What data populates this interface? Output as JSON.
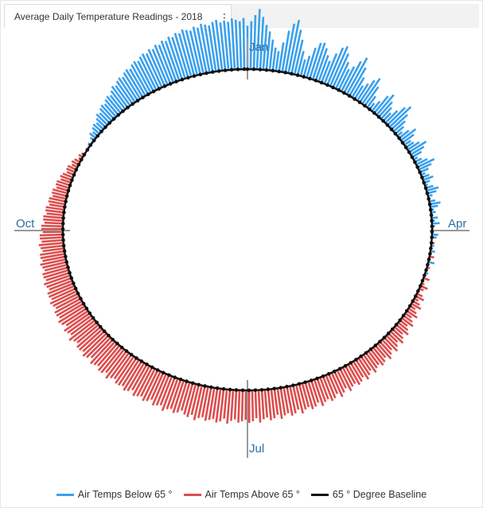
{
  "panel": {
    "title": "Average Daily Temperature Readings - 2018",
    "menu_icon": "more-vertical-icon"
  },
  "colors": {
    "below": "#3aa0ee",
    "above": "#dd4d4d",
    "baseline": "#111111",
    "axis": "#9a9a9a",
    "month_label": "#2a6fa8"
  },
  "chart_data": {
    "type": "radial-bar",
    "title": "Average Daily Temperature Readings - 2018",
    "baseline_value": 65,
    "month_labels": [
      "Jan",
      "Apr",
      "Jul",
      "Oct"
    ],
    "legend": [
      {
        "name": "Air Temps Below 65 °",
        "color": "#3aa0ee"
      },
      {
        "name": "Air Temps Above  65 °",
        "color": "#dd4d4d"
      },
      {
        "name": "65 ° Degree Baseline",
        "color": "#111111"
      }
    ],
    "days": [
      1,
      2,
      3,
      4,
      5,
      6,
      7,
      8,
      9,
      10,
      11,
      12,
      13,
      14,
      15,
      16,
      17,
      18,
      19,
      20,
      21,
      22,
      23,
      24,
      25,
      26,
      27,
      28,
      29,
      30,
      31,
      32,
      33,
      34,
      35,
      36,
      37,
      38,
      39,
      40,
      41,
      42,
      43,
      44,
      45,
      46,
      47,
      48,
      49,
      50,
      51,
      52,
      53,
      54,
      55,
      56,
      57,
      58,
      59,
      60,
      61,
      62,
      63,
      64,
      65,
      66,
      67,
      68,
      69,
      70,
      71,
      72,
      73,
      74,
      75,
      76,
      77,
      78,
      79,
      80,
      81,
      82,
      83,
      84,
      85,
      86,
      87,
      88,
      89,
      90,
      91,
      92,
      93,
      94,
      95,
      96,
      97,
      98,
      99,
      100,
      101,
      102,
      103,
      104,
      105,
      106,
      107,
      108,
      109,
      110,
      111,
      112,
      113,
      114,
      115,
      116,
      117,
      118,
      119,
      120,
      121,
      122,
      123,
      124,
      125,
      126,
      127,
      128,
      129,
      130,
      131,
      132,
      133,
      134,
      135,
      136,
      137,
      138,
      139,
      140,
      141,
      142,
      143,
      144,
      145,
      146,
      147,
      148,
      149,
      150,
      151,
      152,
      153,
      154,
      155,
      156,
      157,
      158,
      159,
      160,
      161,
      162,
      163,
      164,
      165,
      166,
      167,
      168,
      169,
      170,
      171,
      172,
      173,
      174,
      175,
      176,
      177,
      178,
      179,
      180,
      181,
      182,
      183,
      184,
      185,
      186,
      187,
      188,
      189,
      190,
      191,
      192,
      193,
      194,
      195,
      196,
      197,
      198,
      199,
      200,
      201,
      202,
      203,
      204,
      205,
      206,
      207,
      208,
      209,
      210,
      211,
      212,
      213,
      214,
      215,
      216,
      217,
      218,
      219,
      220,
      221,
      222,
      223,
      224,
      225,
      226,
      227,
      228,
      229,
      230,
      231,
      232,
      233,
      234,
      235,
      236,
      237,
      238,
      239,
      240,
      241,
      242,
      243,
      244,
      245,
      246,
      247,
      248,
      249,
      250,
      251,
      252,
      253,
      254,
      255,
      256,
      257,
      258,
      259,
      260,
      261,
      262,
      263,
      264,
      265,
      266,
      267,
      268,
      269,
      270,
      271,
      272,
      273,
      274,
      275,
      276,
      277,
      278,
      279,
      280,
      281,
      282,
      283,
      284,
      285,
      286,
      287,
      288,
      289,
      290,
      291,
      292,
      293,
      294,
      295,
      296,
      297,
      298,
      299,
      300,
      301,
      302,
      303,
      304,
      305,
      306,
      307,
      308,
      309,
      310,
      311,
      312,
      313,
      314,
      315,
      316,
      317,
      318,
      319,
      320,
      321,
      322,
      323,
      324,
      325,
      326,
      327,
      328,
      329,
      330,
      331,
      332,
      333,
      334,
      335,
      336,
      337,
      338,
      339,
      340,
      341,
      342,
      343,
      344,
      345,
      346,
      347,
      348,
      349,
      350,
      351,
      352,
      353,
      354,
      355,
      356,
      357,
      358,
      359,
      360,
      361,
      362,
      363,
      364,
      365
    ],
    "temps": [
      37,
      34,
      30,
      26,
      31,
      36,
      40,
      45,
      50,
      52,
      46,
      38,
      33,
      30,
      36,
      42,
      49,
      54,
      51,
      45,
      41,
      40,
      43,
      47,
      50,
      44,
      39,
      37,
      41,
      46,
      50,
      47,
      42,
      38,
      44,
      50,
      55,
      52,
      48,
      45,
      50,
      56,
      60,
      57,
      51,
      48,
      52,
      55,
      58,
      54,
      49,
      46,
      51,
      55,
      58,
      61,
      57,
      53,
      56,
      60,
      59,
      56,
      52,
      55,
      58,
      62,
      60,
      57,
      53,
      56,
      59,
      62,
      60,
      58,
      61,
      63,
      60,
      57,
      59,
      62,
      64,
      61,
      58,
      60,
      63,
      62,
      65,
      61,
      63,
      60,
      63,
      66,
      64,
      61,
      62,
      65,
      67,
      63,
      66,
      62,
      64,
      68,
      64,
      61,
      64,
      67,
      66,
      63,
      66,
      69,
      65,
      67,
      70,
      68,
      66,
      69,
      71,
      68,
      70,
      72,
      69,
      71,
      73,
      70,
      72,
      74,
      71,
      73,
      75,
      72,
      74,
      76,
      73,
      75,
      77,
      74,
      76,
      78,
      75,
      77,
      78,
      76,
      77,
      79,
      76,
      78,
      80,
      77,
      79,
      80,
      78,
      79,
      81,
      78,
      80,
      82,
      79,
      81,
      82,
      80,
      81,
      83,
      80,
      82,
      83,
      81,
      82,
      84,
      81,
      83,
      84,
      82,
      83,
      85,
      82,
      84,
      85,
      83,
      84,
      86,
      83,
      85,
      86,
      84,
      85,
      86,
      84,
      85,
      87,
      84,
      86,
      87,
      85,
      86,
      87,
      85,
      86,
      88,
      85,
      87,
      86,
      84,
      86,
      87,
      85,
      86,
      88,
      85,
      86,
      87,
      84,
      86,
      87,
      85,
      86,
      87,
      84,
      86,
      87,
      85,
      86,
      86,
      84,
      85,
      87,
      84,
      86,
      86,
      84,
      85,
      86,
      83,
      85,
      86,
      84,
      85,
      85,
      83,
      84,
      86,
      83,
      84,
      85,
      82,
      84,
      85,
      83,
      84,
      84,
      82,
      83,
      84,
      82,
      83,
      83,
      81,
      82,
      83,
      81,
      82,
      82,
      80,
      81,
      82,
      80,
      81,
      81,
      79,
      80,
      81,
      79,
      80,
      80,
      78,
      79,
      79,
      77,
      78,
      78,
      76,
      77,
      77,
      75,
      76,
      76,
      74,
      75,
      75,
      73,
      74,
      74,
      72,
      73,
      72,
      70,
      71,
      71,
      69,
      70,
      69,
      67,
      68,
      67,
      65,
      66,
      64,
      63,
      64,
      62,
      60,
      61,
      59,
      58,
      59,
      57,
      55,
      56,
      54,
      53,
      54,
      52,
      51,
      52,
      50,
      48,
      49,
      47,
      46,
      47,
      45,
      44,
      45,
      43,
      42,
      43,
      41,
      40,
      41,
      39,
      40,
      38,
      39,
      37,
      38,
      36,
      37,
      35,
      36,
      34,
      35,
      36,
      34,
      35,
      33,
      34,
      35,
      33,
      32,
      34,
      33,
      34,
      32,
      33,
      34,
      32
    ]
  }
}
